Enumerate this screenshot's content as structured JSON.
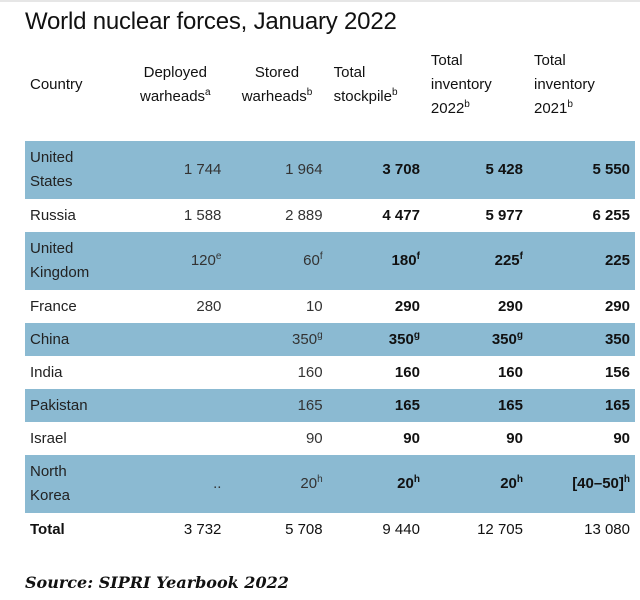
{
  "title": "World nuclear forces, January 2022",
  "source": "Source: SIPRI Yearbook 2022",
  "colors": {
    "row_shade": "#8bbad2"
  },
  "chart_data": {
    "type": "table",
    "title": "World nuclear forces, January 2022",
    "headers": [
      {
        "text": "Country",
        "sup": ""
      },
      {
        "text": "Deployed warheads",
        "sup": "a"
      },
      {
        "text": "Stored warheads",
        "sup": "b"
      },
      {
        "text": "Total stockpile",
        "sup": "b"
      },
      {
        "text": "Total inventory 2022",
        "sup": "b"
      },
      {
        "text": "Total inventory 2021",
        "sup": "b"
      }
    ],
    "rows": [
      {
        "country": "United States",
        "shaded": true,
        "cells": [
          {
            "v": "1 744",
            "s": ""
          },
          {
            "v": "1 964",
            "s": ""
          },
          {
            "v": "3 708",
            "s": ""
          },
          {
            "v": "5 428",
            "s": ""
          },
          {
            "v": "5 550",
            "s": ""
          }
        ]
      },
      {
        "country": "Russia",
        "shaded": false,
        "cells": [
          {
            "v": "1 588",
            "s": ""
          },
          {
            "v": "2 889",
            "s": ""
          },
          {
            "v": "4 477",
            "s": ""
          },
          {
            "v": "5 977",
            "s": ""
          },
          {
            "v": "6 255",
            "s": ""
          }
        ]
      },
      {
        "country": "United Kingdom",
        "shaded": true,
        "cells": [
          {
            "v": "120",
            "s": "e"
          },
          {
            "v": "60",
            "s": "f"
          },
          {
            "v": "180",
            "s": "f"
          },
          {
            "v": "225",
            "s": "f"
          },
          {
            "v": "225",
            "s": ""
          }
        ]
      },
      {
        "country": "France",
        "shaded": false,
        "cells": [
          {
            "v": "280",
            "s": ""
          },
          {
            "v": "10",
            "s": ""
          },
          {
            "v": "290",
            "s": ""
          },
          {
            "v": "290",
            "s": ""
          },
          {
            "v": "290",
            "s": ""
          }
        ]
      },
      {
        "country": "China",
        "shaded": true,
        "cells": [
          {
            "v": "",
            "s": ""
          },
          {
            "v": "350",
            "s": "g"
          },
          {
            "v": "350",
            "s": "g"
          },
          {
            "v": "350",
            "s": "g"
          },
          {
            "v": "350",
            "s": ""
          }
        ]
      },
      {
        "country": "India",
        "shaded": false,
        "cells": [
          {
            "v": "",
            "s": ""
          },
          {
            "v": "160",
            "s": ""
          },
          {
            "v": "160",
            "s": ""
          },
          {
            "v": "160",
            "s": ""
          },
          {
            "v": "156",
            "s": ""
          }
        ]
      },
      {
        "country": "Pakistan",
        "shaded": true,
        "cells": [
          {
            "v": "",
            "s": ""
          },
          {
            "v": "165",
            "s": ""
          },
          {
            "v": "165",
            "s": ""
          },
          {
            "v": "165",
            "s": ""
          },
          {
            "v": "165",
            "s": ""
          }
        ]
      },
      {
        "country": "Israel",
        "shaded": false,
        "cells": [
          {
            "v": "",
            "s": ""
          },
          {
            "v": "90",
            "s": ""
          },
          {
            "v": "90",
            "s": ""
          },
          {
            "v": "90",
            "s": ""
          },
          {
            "v": "90",
            "s": ""
          }
        ]
      },
      {
        "country": "North Korea",
        "shaded": true,
        "cells": [
          {
            "v": "..",
            "s": ""
          },
          {
            "v": "20",
            "s": "h"
          },
          {
            "v": "20",
            "s": "h"
          },
          {
            "v": "20",
            "s": "h"
          },
          {
            "v": "[40–50]",
            "s": "h"
          }
        ]
      }
    ],
    "total": {
      "country": "Total",
      "cells": [
        {
          "v": "3 732",
          "s": ""
        },
        {
          "v": "5 708",
          "s": ""
        },
        {
          "v": "9 440",
          "s": ""
        },
        {
          "v": "12 705",
          "s": ""
        },
        {
          "v": "13 080",
          "s": ""
        }
      ]
    }
  }
}
